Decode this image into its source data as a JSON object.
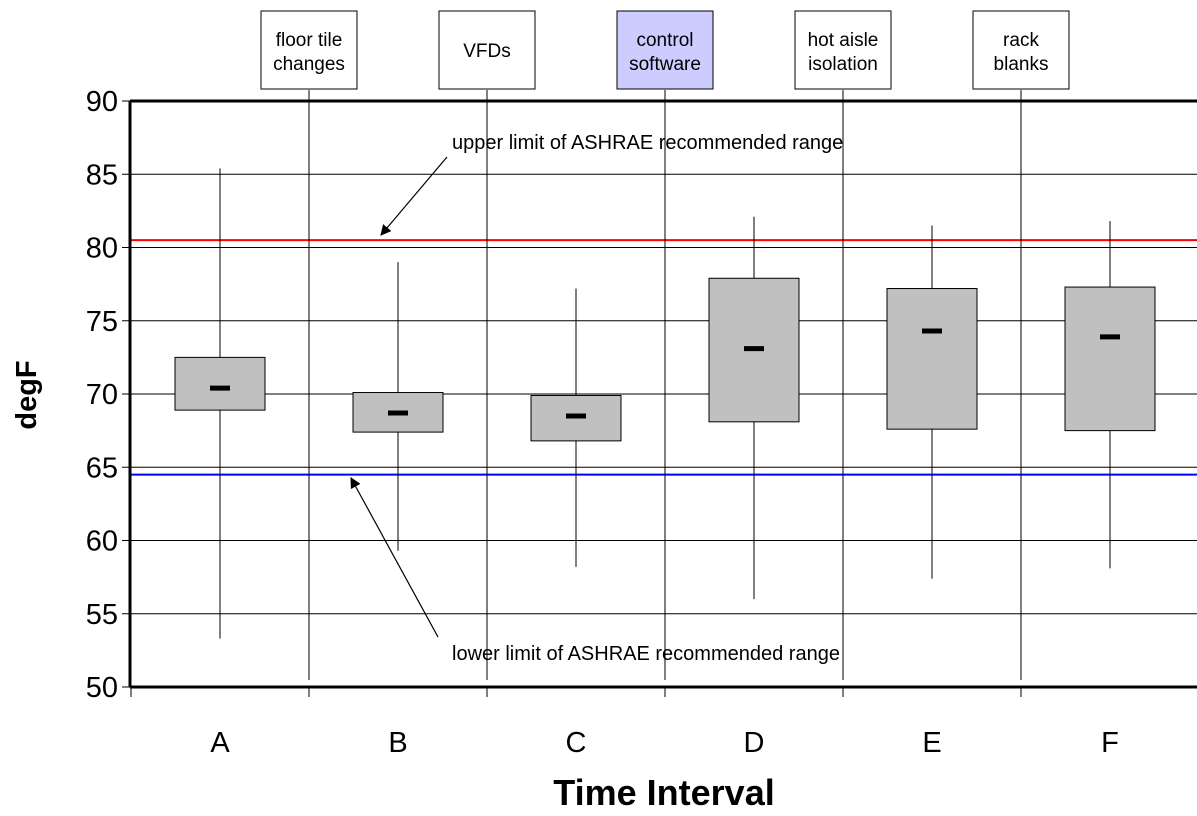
{
  "chart_data": {
    "type": "box",
    "ylabel": "degF",
    "xlabel": "Time Interval",
    "ylim": [
      50,
      90
    ],
    "yticks": [
      50,
      55,
      60,
      65,
      70,
      75,
      80,
      85,
      90
    ],
    "grid": true,
    "categories": [
      "A",
      "B",
      "C",
      "D",
      "E",
      "F"
    ],
    "boxes": [
      {
        "category": "A",
        "min": 53.3,
        "q1": 68.9,
        "median": 70.4,
        "q3": 72.5,
        "max": 85.4
      },
      {
        "category": "B",
        "min": 59.3,
        "q1": 67.4,
        "median": 68.7,
        "q3": 70.1,
        "max": 79.0
      },
      {
        "category": "C",
        "min": 58.2,
        "q1": 66.8,
        "median": 68.5,
        "q3": 69.9,
        "max": 77.2
      },
      {
        "category": "D",
        "min": 56.0,
        "q1": 68.1,
        "median": 73.1,
        "q3": 77.9,
        "max": 82.1
      },
      {
        "category": "E",
        "min": 57.4,
        "q1": 67.6,
        "median": 74.3,
        "q3": 77.2,
        "max": 81.5
      },
      {
        "category": "F",
        "min": 58.1,
        "q1": 67.5,
        "median": 73.9,
        "q3": 77.3,
        "max": 81.8
      }
    ],
    "reference_lines": [
      {
        "value": 80.5,
        "color": "#ff0000",
        "label": "upper limit of ASHRAE recommended range"
      },
      {
        "value": 64.5,
        "color": "#0000ff",
        "label": "lower limit of ASHRAE recommended range"
      }
    ],
    "events": [
      {
        "after_category": "A",
        "label": [
          "floor tile",
          "changes"
        ],
        "highlight": false
      },
      {
        "after_category": "B",
        "label": [
          "VFDs"
        ],
        "highlight": false
      },
      {
        "after_category": "C",
        "label": [
          "control",
          "software"
        ],
        "highlight": true
      },
      {
        "after_category": "D",
        "label": [
          "hot aisle",
          "isolation"
        ],
        "highlight": false
      },
      {
        "after_category": "E",
        "label": [
          "rack",
          "blanks"
        ],
        "highlight": false
      }
    ],
    "colors": {
      "box_fill": "#c0c0c0",
      "highlight_fill": "#ccccff",
      "grid": "#000000"
    }
  }
}
